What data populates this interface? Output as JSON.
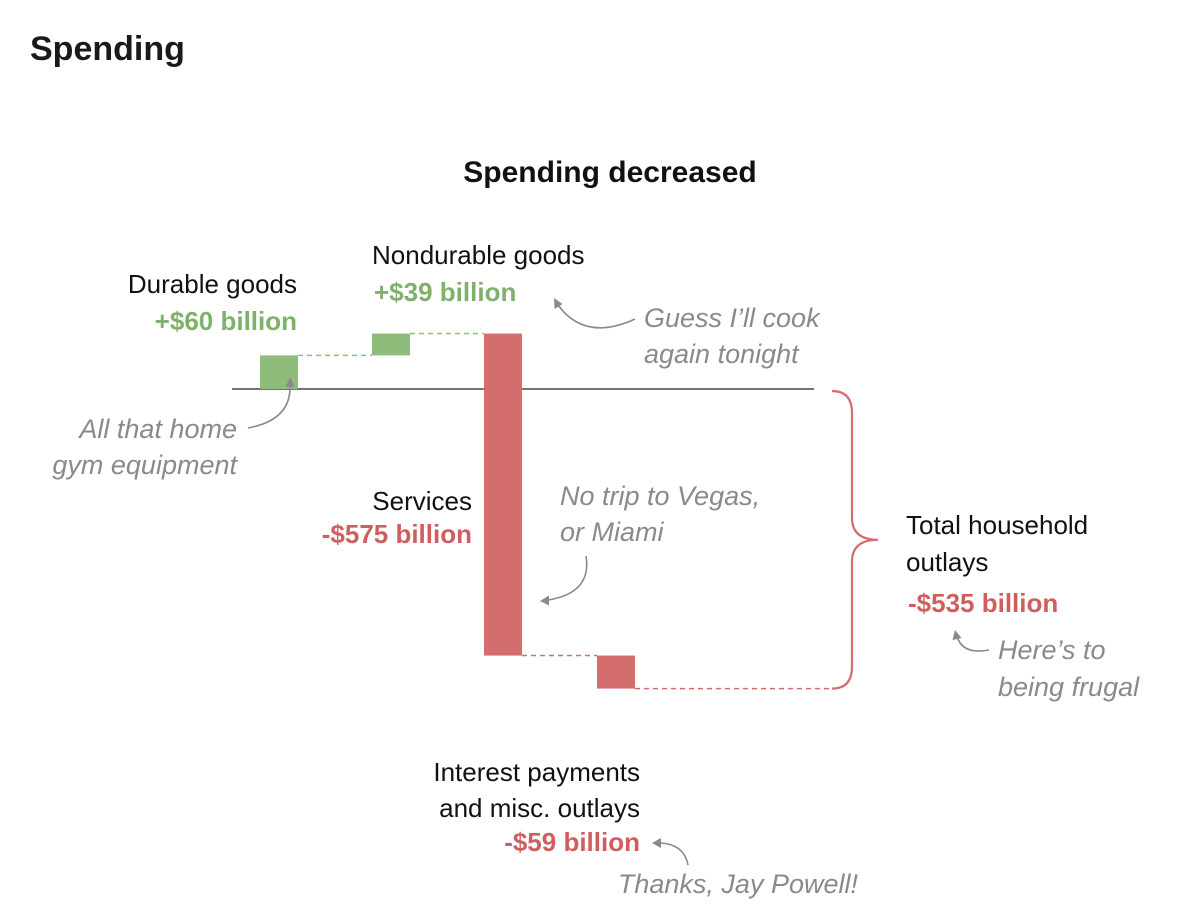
{
  "header": {
    "section_title": "Spending"
  },
  "colors": {
    "increase": "#8fbc7a",
    "increase_text": "#7fb06c",
    "decrease": "#d46d6d",
    "decrease_text": "#cf5f5f",
    "baseline": "#222222",
    "annotation": "#8a8a8a"
  },
  "chart_data": {
    "type": "waterfall",
    "title": "Spending decreased",
    "unit": "billion dollars",
    "baseline": 0,
    "steps": [
      {
        "name": "Durable goods",
        "name_lines": [
          "Durable goods"
        ],
        "value": 60,
        "value_label": "+$60 billion"
      },
      {
        "name": "Nondurable goods",
        "name_lines": [
          "Nondurable goods"
        ],
        "value": 39,
        "value_label": "+$39 billion"
      },
      {
        "name": "Services",
        "name_lines": [
          "Services"
        ],
        "value": -575,
        "value_label": "-$575 billion"
      },
      {
        "name": "Interest payments and misc. outlays",
        "name_lines": [
          "Interest payments",
          "and misc. outlays"
        ],
        "value": -59,
        "value_label": "-$59 billion"
      }
    ],
    "total": {
      "name": "Total household outlays",
      "name_lines": [
        "Total household",
        "outlays"
      ],
      "value": -535,
      "value_label": "-$535 billion"
    },
    "annotations": [
      {
        "target": "Durable goods",
        "lines": [
          "All that home",
          "gym equipment"
        ]
      },
      {
        "target": "Nondurable goods",
        "lines": [
          "Guess I’ll cook",
          "again tonight"
        ]
      },
      {
        "target": "Services",
        "lines": [
          "No trip to Vegas,",
          "or Miami"
        ]
      },
      {
        "target": "Total household outlays",
        "lines": [
          "Here’s to",
          "being frugal"
        ]
      },
      {
        "target": "Interest payments and misc. outlays",
        "lines": [
          "Thanks, Jay Powell!"
        ]
      }
    ]
  }
}
